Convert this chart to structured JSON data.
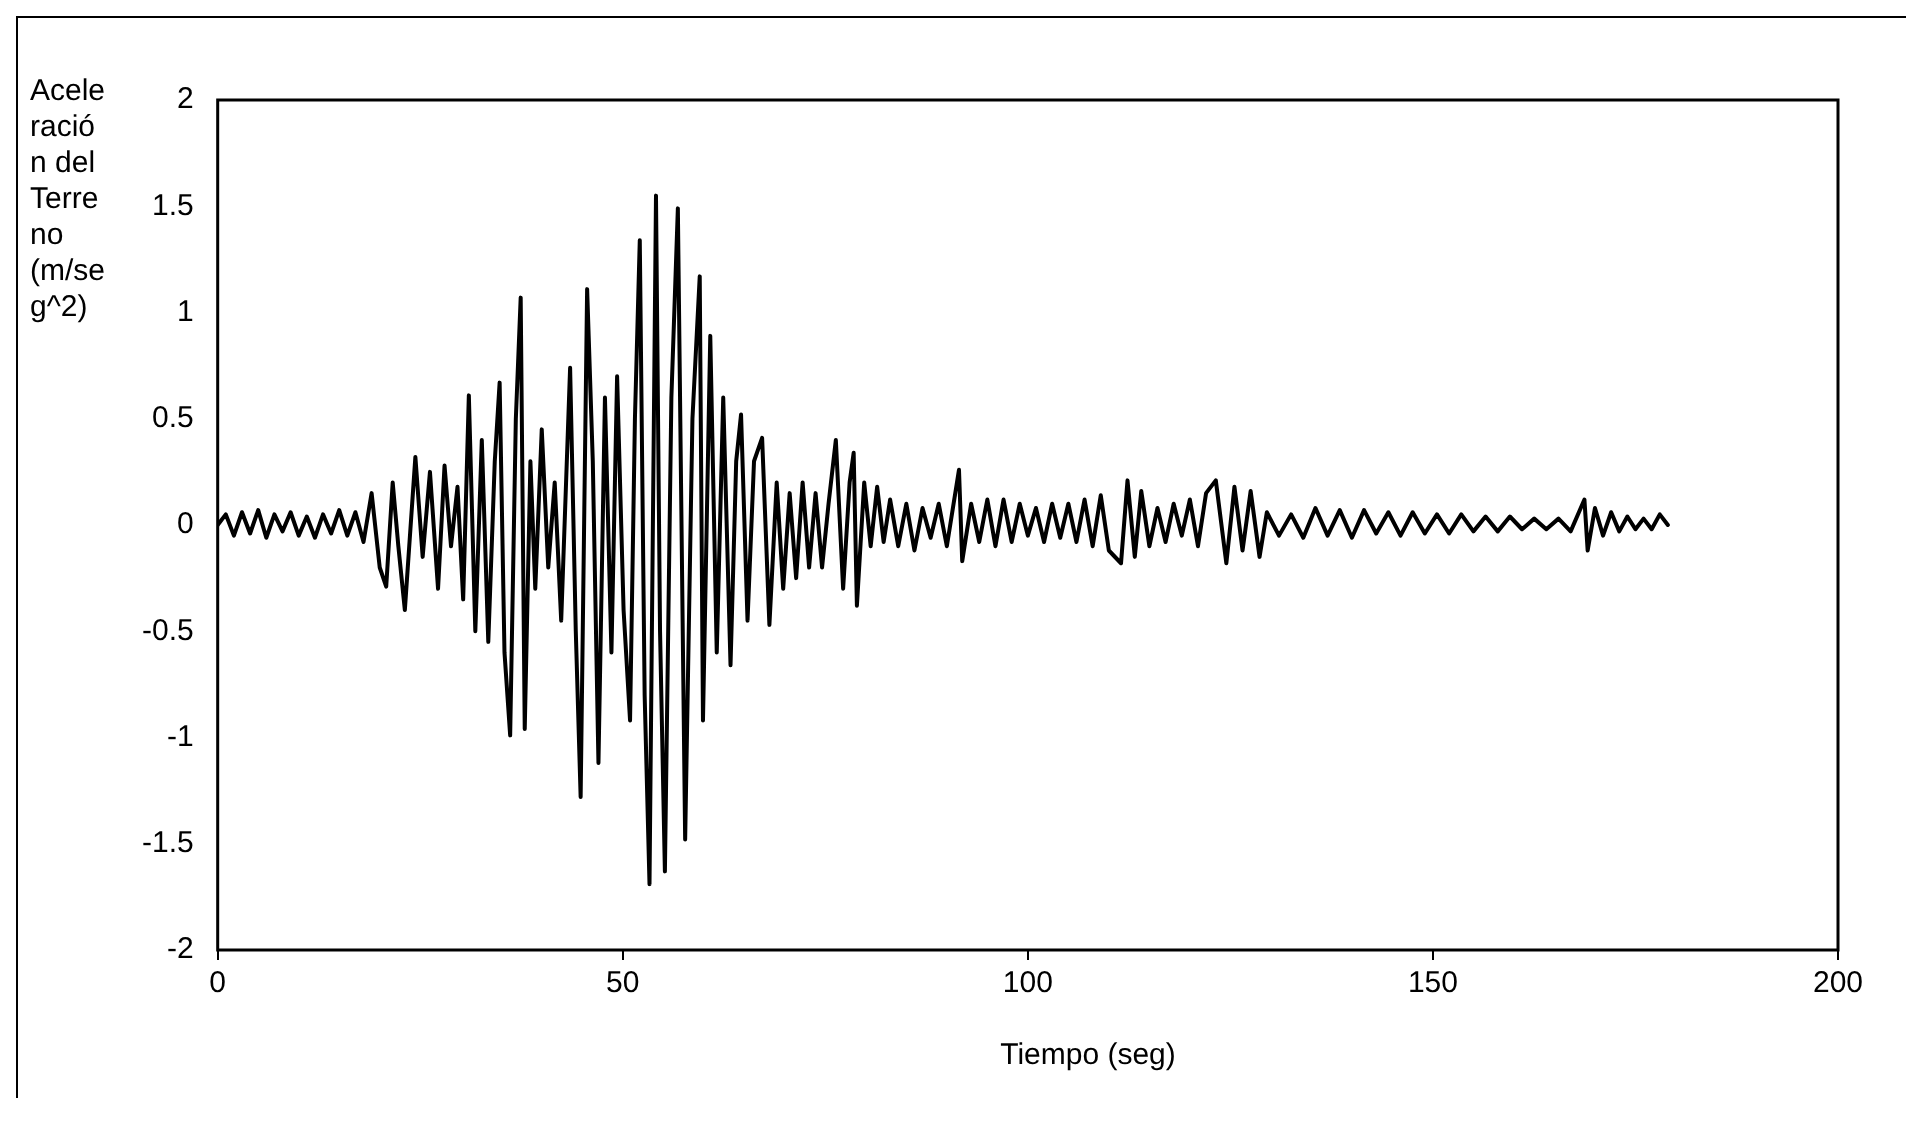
{
  "chart_data": {
    "type": "line",
    "xlabel": "Tiempo (seg)",
    "ylabel": "Aceleración del Terreno (m/seg^2)",
    "xlim": [
      0,
      200
    ],
    "xticks": [
      0,
      50,
      100,
      150,
      200
    ],
    "ylim": [
      -2,
      2
    ],
    "yticks": [
      -2,
      -1.5,
      -1,
      -0.5,
      0,
      0.5,
      1,
      1.5,
      2
    ],
    "grid": false,
    "legend": false,
    "marker": "none",
    "line_style": "solid",
    "series": [
      {
        "color": "#000000",
        "x": [
          0,
          1,
          2,
          3,
          4,
          5,
          6,
          7,
          8,
          9,
          10,
          11,
          12,
          13,
          14,
          15,
          16,
          17,
          18,
          19,
          20,
          20.8,
          21.6,
          22.3,
          23.1,
          24.4,
          25.3,
          26.2,
          27.2,
          28,
          28.8,
          29.6,
          30.3,
          31,
          31.8,
          32.6,
          33.4,
          34.2,
          34.8,
          35.4,
          36.1,
          36.8,
          37.4,
          37.9,
          38.6,
          39.2,
          40,
          40.8,
          41.6,
          42.4,
          43.5,
          44.2,
          44.8,
          45.6,
          46.3,
          47,
          47.8,
          48.6,
          49.3,
          50.1,
          50.9,
          51.5,
          52.1,
          52.7,
          53.3,
          54.1,
          54.6,
          55.2,
          56,
          56.8,
          57.7,
          58.6,
          59.5,
          59.9,
          60.8,
          61.6,
          62.4,
          63.3,
          64,
          64.6,
          65.4,
          66.2,
          67.2,
          68.1,
          69,
          69.8,
          70.6,
          71.4,
          72.2,
          73,
          73.8,
          74.6,
          75.4,
          76.3,
          77.2,
          78,
          78.5,
          78.9,
          79.8,
          80.6,
          81.4,
          82.2,
          83,
          84,
          85,
          86,
          87,
          88,
          89,
          90,
          91.5,
          91.9,
          93,
          94,
          95,
          96,
          97,
          98,
          99,
          100,
          101,
          102,
          103,
          104,
          105,
          106,
          107,
          108,
          109,
          110,
          111.5,
          112.3,
          113.2,
          114,
          115,
          116,
          117,
          118,
          119,
          120,
          121,
          122,
          123.2,
          124.5,
          125.5,
          126.5,
          127.5,
          128.6,
          129.5,
          131,
          132.5,
          134,
          135.5,
          137,
          138.5,
          140,
          141.5,
          143,
          144.5,
          146,
          147.5,
          149,
          150.5,
          152,
          153.5,
          155,
          156.5,
          158,
          159.5,
          161,
          162.5,
          164,
          165.5,
          167,
          168.7,
          169.1,
          170,
          171,
          172,
          173,
          174,
          175,
          176,
          177,
          178,
          179
        ],
        "values": [
          0,
          0.05,
          -0.05,
          0.06,
          -0.04,
          0.07,
          -0.06,
          0.05,
          -0.03,
          0.06,
          -0.05,
          0.04,
          -0.06,
          0.05,
          -0.04,
          0.07,
          -0.05,
          0.06,
          -0.08,
          0.15,
          -0.2,
          -0.29,
          0.2,
          -0.1,
          -0.4,
          0.32,
          -0.15,
          0.25,
          -0.3,
          0.28,
          -0.1,
          0.18,
          -0.35,
          0.61,
          -0.5,
          0.4,
          -0.55,
          0.3,
          0.67,
          -0.6,
          -0.99,
          0.5,
          1.07,
          -0.96,
          0.3,
          -0.3,
          0.45,
          -0.2,
          0.2,
          -0.45,
          0.74,
          -0.5,
          -1.28,
          1.11,
          0.3,
          -1.12,
          0.6,
          -0.6,
          0.7,
          -0.4,
          -0.92,
          0.5,
          1.34,
          -0.8,
          -1.69,
          1.55,
          -0.5,
          -1.63,
          0.6,
          1.49,
          -1.48,
          0.5,
          1.17,
          -0.92,
          0.89,
          -0.6,
          0.6,
          -0.66,
          0.3,
          0.52,
          -0.45,
          0.3,
          0.41,
          -0.47,
          0.2,
          -0.3,
          0.15,
          -0.25,
          0.2,
          -0.2,
          0.15,
          -0.2,
          0.1,
          0.4,
          -0.3,
          0.2,
          0.34,
          -0.38,
          0.2,
          -0.1,
          0.18,
          -0.08,
          0.12,
          -0.1,
          0.1,
          -0.12,
          0.08,
          -0.06,
          0.1,
          -0.1,
          0.26,
          -0.17,
          0.1,
          -0.08,
          0.12,
          -0.1,
          0.12,
          -0.08,
          0.1,
          -0.05,
          0.08,
          -0.08,
          0.1,
          -0.06,
          0.1,
          -0.08,
          0.12,
          -0.1,
          0.14,
          -0.12,
          -0.18,
          0.21,
          -0.15,
          0.16,
          -0.1,
          0.08,
          -0.08,
          0.1,
          -0.05,
          0.12,
          -0.1,
          0.15,
          0.21,
          -0.18,
          0.18,
          -0.12,
          0.16,
          -0.15,
          0.06,
          -0.05,
          0.05,
          -0.06,
          0.08,
          -0.05,
          0.07,
          -0.06,
          0.07,
          -0.04,
          0.06,
          -0.05,
          0.06,
          -0.04,
          0.05,
          -0.04,
          0.05,
          -0.03,
          0.04,
          -0.03,
          0.04,
          -0.02,
          0.03,
          -0.02,
          0.03,
          -0.03,
          0.12,
          -0.12,
          0.08,
          -0.05,
          0.06,
          -0.03,
          0.04,
          -0.02,
          0.03,
          -0.02,
          0.05,
          0
        ]
      }
    ]
  }
}
